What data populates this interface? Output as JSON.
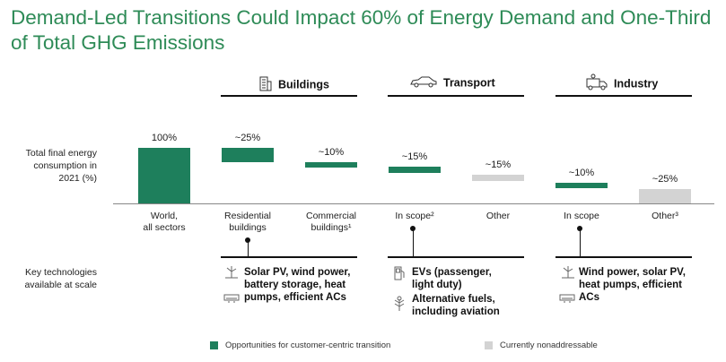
{
  "title": "Demand-Led Transitions Could Impact 60% of Energy Demand and One-Third of Total GHG Emissions",
  "chart_data": {
    "type": "bar",
    "ylabel": "Total final energy consumption in 2021 (%)",
    "ylim": [
      0,
      100
    ],
    "colors": {
      "addressable": "#1e7f5c",
      "nonaddressable": "#d3d3d3"
    },
    "groups": [
      {
        "name": "",
        "icon": ""
      },
      {
        "name": "Buildings",
        "icon": "building-icon"
      },
      {
        "name": "Transport",
        "icon": "car-icon"
      },
      {
        "name": "Industry",
        "icon": "factory-truck-icon"
      }
    ],
    "bars": [
      {
        "category": "World,\nall sectors",
        "value_label": "100%",
        "value": 100,
        "color": "addressable"
      },
      {
        "category": "Residential\nbuildings",
        "value_label": "~25%",
        "value": 25,
        "color": "addressable"
      },
      {
        "category": "Commercial\nbuildings¹",
        "value_label": "~10%",
        "value": 10,
        "color": "addressable"
      },
      {
        "category": "In scope²",
        "value_label": "~15%",
        "value": 15,
        "color": "addressable"
      },
      {
        "category": "Other",
        "value_label": "~15%",
        "value": 15,
        "color": "nonaddressable"
      },
      {
        "category": "In scope",
        "value_label": "~10%",
        "value": 10,
        "color": "addressable"
      },
      {
        "category": "Other³",
        "value_label": "~25%",
        "value": 25,
        "color": "nonaddressable"
      }
    ],
    "legend": [
      {
        "label": "Opportunities for customer-centric transition",
        "color": "addressable"
      },
      {
        "label": "Currently nonaddressable",
        "color": "nonaddressable"
      }
    ],
    "legend_position": "bottom"
  },
  "row_labels": {
    "energy": "Total final energy\nconsumption in\n2021 (%)",
    "tech": "Key technologies\navailable at scale"
  },
  "technologies": {
    "buildings": [
      {
        "icon": "wind-turbine-icon",
        "text": "Solar PV, wind power,\nbattery storage, heat"
      },
      {
        "icon": "air-conditioner-icon",
        "text": "pumps, efficient ACs"
      }
    ],
    "transport": [
      {
        "icon": "fuel-pump-icon",
        "text": "EVs (passenger,\nlight duty)"
      },
      {
        "icon": "plant-fuel-icon",
        "text": "Alternative fuels,\nincluding aviation"
      }
    ],
    "industry": [
      {
        "icon": "wind-turbine-icon",
        "text": "Wind power, solar PV,\nheat pumps, efficient"
      },
      {
        "icon": "air-conditioner-icon",
        "text": "ACs"
      }
    ]
  }
}
